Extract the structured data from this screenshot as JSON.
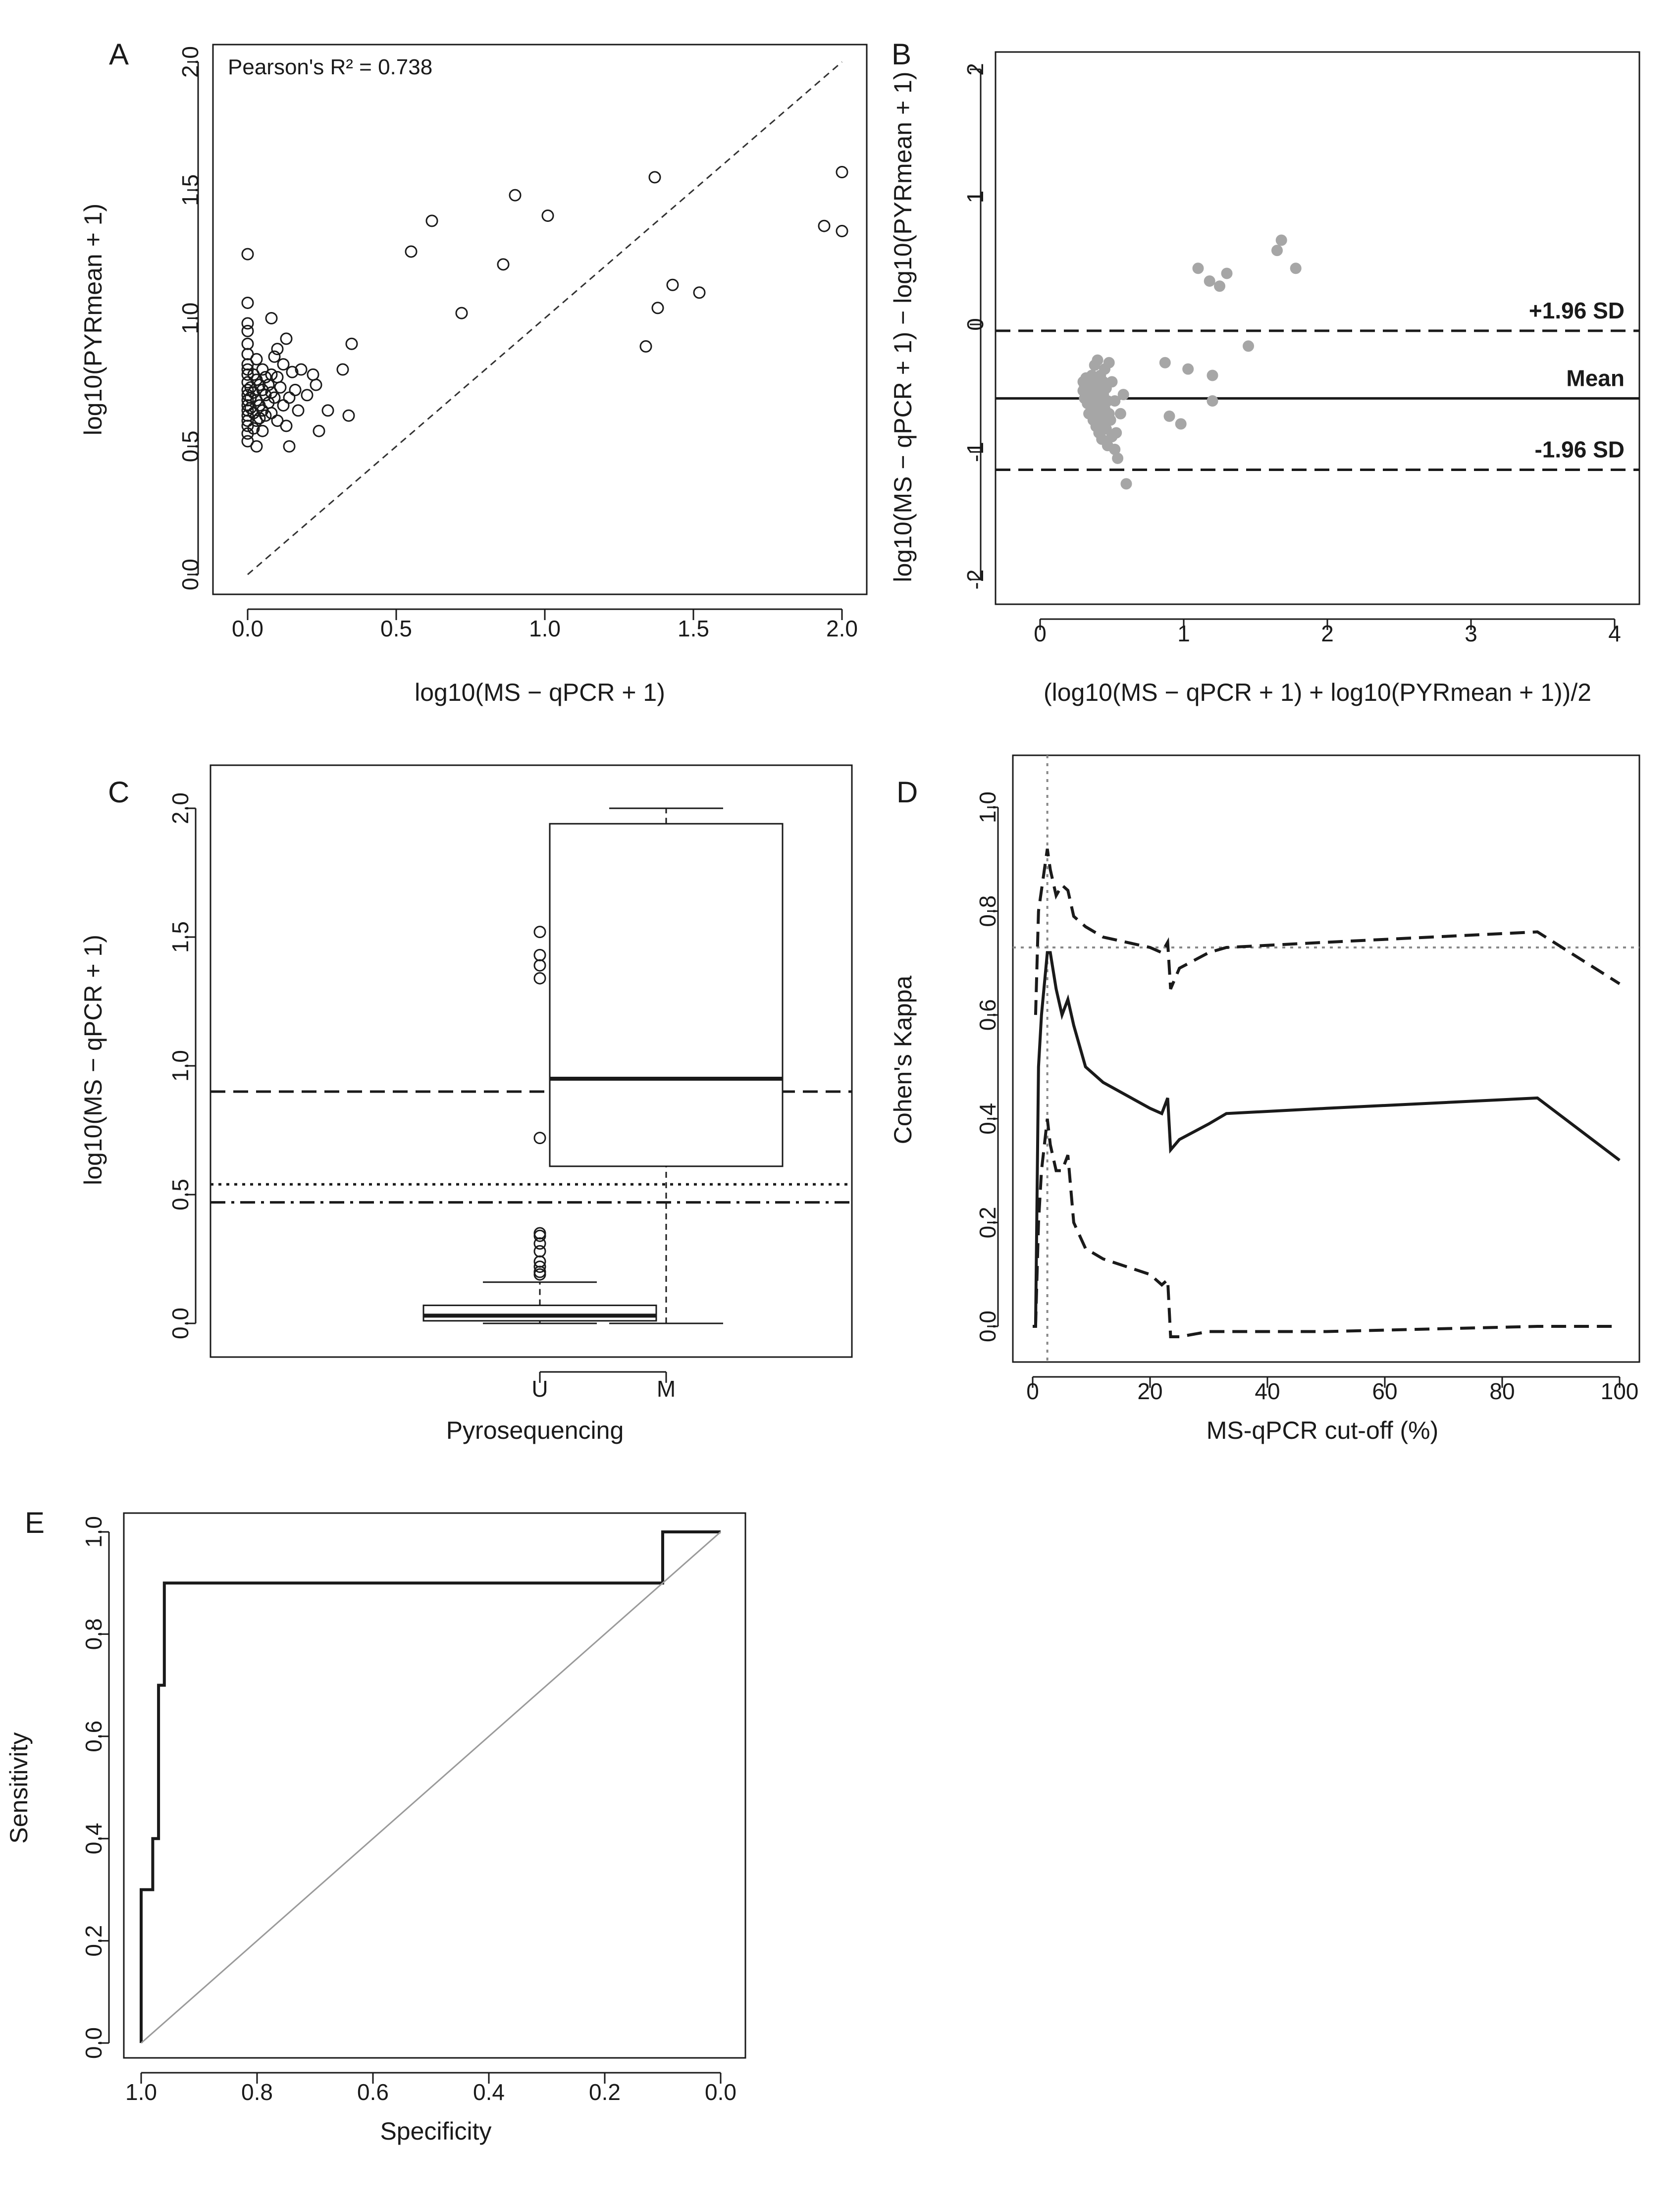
{
  "chart_data": [
    {
      "panel": "A",
      "type": "scatter",
      "xlabel": "log10(MS − qPCR + 1)",
      "ylabel": "log10(PYRmean + 1)",
      "annotation": "Pearson's R² = 0.738",
      "xlim": [
        0,
        2
      ],
      "ylim": [
        0,
        2
      ],
      "xticks": [
        "0.0",
        "0.5",
        "1.0",
        "1.5",
        "2.0"
      ],
      "yticks": [
        "0.0",
        "0.5",
        "1.0",
        "1.5",
        "2.0"
      ],
      "reference_line": "identity (y = x), dashed",
      "points": [
        [
          0.0,
          1.25
        ],
        [
          0.0,
          1.06
        ],
        [
          0.0,
          0.98
        ],
        [
          0.0,
          0.95
        ],
        [
          0.0,
          0.9
        ],
        [
          0.0,
          0.86
        ],
        [
          0.0,
          0.82
        ],
        [
          0.0,
          0.8
        ],
        [
          0.0,
          0.78
        ],
        [
          0.0,
          0.75
        ],
        [
          0.0,
          0.72
        ],
        [
          0.0,
          0.7
        ],
        [
          0.0,
          0.68
        ],
        [
          0.0,
          0.66
        ],
        [
          0.0,
          0.64
        ],
        [
          0.0,
          0.62
        ],
        [
          0.0,
          0.6
        ],
        [
          0.0,
          0.58
        ],
        [
          0.0,
          0.55
        ],
        [
          0.0,
          0.52
        ],
        [
          0.01,
          0.73
        ],
        [
          0.01,
          0.69
        ],
        [
          0.01,
          0.65
        ],
        [
          0.02,
          0.78
        ],
        [
          0.02,
          0.71
        ],
        [
          0.02,
          0.63
        ],
        [
          0.02,
          0.57
        ],
        [
          0.03,
          0.84
        ],
        [
          0.03,
          0.76
        ],
        [
          0.03,
          0.68
        ],
        [
          0.03,
          0.6
        ],
        [
          0.03,
          0.5
        ],
        [
          0.04,
          0.74
        ],
        [
          0.04,
          0.66
        ],
        [
          0.04,
          0.61
        ],
        [
          0.05,
          0.8
        ],
        [
          0.05,
          0.72
        ],
        [
          0.05,
          0.64
        ],
        [
          0.05,
          0.56
        ],
        [
          0.06,
          0.77
        ],
        [
          0.06,
          0.7
        ],
        [
          0.06,
          0.62
        ],
        [
          0.07,
          0.74
        ],
        [
          0.07,
          0.67
        ],
        [
          0.08,
          1.0
        ],
        [
          0.08,
          0.78
        ],
        [
          0.08,
          0.71
        ],
        [
          0.08,
          0.63
        ],
        [
          0.09,
          0.85
        ],
        [
          0.09,
          0.69
        ],
        [
          0.1,
          0.88
        ],
        [
          0.1,
          0.77
        ],
        [
          0.1,
          0.6
        ],
        [
          0.11,
          0.73
        ],
        [
          0.12,
          0.66
        ],
        [
          0.12,
          0.82
        ],
        [
          0.13,
          0.58
        ],
        [
          0.13,
          0.92
        ],
        [
          0.14,
          0.69
        ],
        [
          0.14,
          0.5
        ],
        [
          0.15,
          0.79
        ],
        [
          0.16,
          0.72
        ],
        [
          0.17,
          0.64
        ],
        [
          0.18,
          0.8
        ],
        [
          0.2,
          0.7
        ],
        [
          0.22,
          0.78
        ],
        [
          0.23,
          0.74
        ],
        [
          0.24,
          0.56
        ],
        [
          0.27,
          0.64
        ],
        [
          0.32,
          0.8
        ],
        [
          0.34,
          0.62
        ],
        [
          0.35,
          0.9
        ],
        [
          0.55,
          1.26
        ],
        [
          0.62,
          1.38
        ],
        [
          0.72,
          1.02
        ],
        [
          0.86,
          1.21
        ],
        [
          0.9,
          1.48
        ],
        [
          1.01,
          1.4
        ],
        [
          1.34,
          0.89
        ],
        [
          1.37,
          1.55
        ],
        [
          1.38,
          1.04
        ],
        [
          1.43,
          1.13
        ],
        [
          1.52,
          1.1
        ],
        [
          1.94,
          1.36
        ],
        [
          2.0,
          1.34
        ],
        [
          2.0,
          1.57
        ]
      ]
    },
    {
      "panel": "B",
      "type": "scatter",
      "subtype": "Bland-Altman",
      "xlabel": "(log10(MS − qPCR + 1) + log10(PYRmean + 1))/2",
      "ylabel": "log10(MS − qPCR + 1) − log10(PYRmean + 1)",
      "xlim": [
        0,
        4
      ],
      "ylim": [
        -2,
        2
      ],
      "xticks": [
        "0",
        "1",
        "2",
        "3",
        "4"
      ],
      "yticks": [
        "-2",
        "-1",
        "0",
        "1",
        "2"
      ],
      "lines": [
        {
          "label": "+1.96 SD",
          "y": -0.05,
          "style": "dashed"
        },
        {
          "label": "Mean",
          "y": -0.58,
          "style": "solid"
        },
        {
          "label": "-1.96 SD",
          "y": -1.14,
          "style": "dashed"
        }
      ],
      "points": [
        [
          0.3,
          -0.45
        ],
        [
          0.3,
          -0.52
        ],
        [
          0.31,
          -0.48
        ],
        [
          0.31,
          -0.58
        ],
        [
          0.32,
          -0.42
        ],
        [
          0.32,
          -0.55
        ],
        [
          0.33,
          -0.5
        ],
        [
          0.33,
          -0.62
        ],
        [
          0.34,
          -0.46
        ],
        [
          0.34,
          -0.7
        ],
        [
          0.35,
          -0.53
        ],
        [
          0.35,
          -0.6
        ],
        [
          0.36,
          -0.4
        ],
        [
          0.36,
          -0.66
        ],
        [
          0.37,
          -0.5
        ],
        [
          0.37,
          -0.75
        ],
        [
          0.38,
          -0.56
        ],
        [
          0.38,
          -0.62
        ],
        [
          0.39,
          -0.45
        ],
        [
          0.39,
          -0.8
        ],
        [
          0.4,
          -0.52
        ],
        [
          0.4,
          -0.68
        ],
        [
          0.41,
          -0.58
        ],
        [
          0.41,
          -0.85
        ],
        [
          0.42,
          -0.48
        ],
        [
          0.42,
          -0.72
        ],
        [
          0.43,
          -0.62
        ],
        [
          0.43,
          -0.9
        ],
        [
          0.44,
          -0.55
        ],
        [
          0.44,
          -0.78
        ],
        [
          0.45,
          -0.66
        ],
        [
          0.45,
          -0.35
        ],
        [
          0.46,
          -0.5
        ],
        [
          0.46,
          -0.82
        ],
        [
          0.47,
          -0.6
        ],
        [
          0.47,
          -0.95
        ],
        [
          0.48,
          -0.7
        ],
        [
          0.48,
          -0.3
        ],
        [
          0.49,
          -0.75
        ],
        [
          0.5,
          -0.88
        ],
        [
          0.5,
          -0.45
        ],
        [
          0.52,
          -0.98
        ],
        [
          0.52,
          -0.6
        ],
        [
          0.53,
          -0.85
        ],
        [
          0.54,
          -1.05
        ],
        [
          0.56,
          -0.7
        ],
        [
          0.58,
          -0.55
        ],
        [
          0.6,
          -1.25
        ],
        [
          0.38,
          -0.32
        ],
        [
          0.4,
          -0.28
        ],
        [
          0.42,
          -0.4
        ],
        [
          0.44,
          -0.45
        ],
        [
          0.87,
          -0.3
        ],
        [
          0.9,
          -0.72
        ],
        [
          0.98,
          -0.78
        ],
        [
          1.03,
          -0.35
        ],
        [
          1.1,
          0.44
        ],
        [
          1.18,
          0.34
        ],
        [
          1.2,
          -0.4
        ],
        [
          1.2,
          -0.6
        ],
        [
          1.25,
          0.3
        ],
        [
          1.3,
          0.4
        ],
        [
          1.45,
          -0.17
        ],
        [
          1.65,
          0.58
        ],
        [
          1.68,
          0.66
        ],
        [
          1.78,
          0.44
        ]
      ]
    },
    {
      "panel": "C",
      "type": "box",
      "xlabel": "Pyrosequencing",
      "ylabel": "log10(MS − qPCR + 1)",
      "categories": [
        "U",
        "M"
      ],
      "ylim": [
        0,
        2
      ],
      "yticks": [
        "0.0",
        "0.5",
        "1.0",
        "1.5",
        "2.0"
      ],
      "boxes": [
        {
          "name": "U",
          "whisker_low": 0.0,
          "q1": 0.01,
          "median": 0.03,
          "q3": 0.07,
          "whisker_high": 0.16,
          "outliers": [
            1.52,
            1.43,
            1.39,
            1.34,
            0.72,
            0.35,
            0.34,
            0.31,
            0.28,
            0.24,
            0.22,
            0.2,
            0.19
          ]
        },
        {
          "name": "M",
          "whisker_low": 0.0,
          "q1": 0.61,
          "median": 0.95,
          "q3": 1.94,
          "whisker_high": 2.0,
          "outliers": []
        }
      ],
      "horizontal_lines": [
        {
          "y": 0.9,
          "style": "dashed"
        },
        {
          "y": 0.54,
          "style": "dotted"
        },
        {
          "y": 0.47,
          "style": "dash-dot"
        }
      ]
    },
    {
      "panel": "D",
      "type": "line",
      "xlabel": "MS-qPCR cut-off (%)",
      "ylabel": "Cohen's Kappa",
      "xlim": [
        0,
        100
      ],
      "ylim": [
        0,
        1
      ],
      "xticks": [
        "0",
        "20",
        "40",
        "60",
        "80",
        "100"
      ],
      "yticks": [
        "0.0",
        "0.2",
        "0.4",
        "0.6",
        "0.8",
        "1.0"
      ],
      "reference_lines": [
        {
          "axis": "x",
          "value": 2.5,
          "style": "dotted"
        },
        {
          "axis": "y",
          "value": 0.73,
          "style": "dotted"
        }
      ],
      "series": [
        {
          "name": "kappa",
          "style": "solid",
          "points": [
            [
              0,
              0
            ],
            [
              0.5,
              0.0
            ],
            [
              1,
              0.5
            ],
            [
              1.5,
              0.6
            ],
            [
              2.5,
              0.72
            ],
            [
              3,
              0.72
            ],
            [
              4,
              0.65
            ],
            [
              5,
              0.6
            ],
            [
              6,
              0.63
            ],
            [
              7,
              0.58
            ],
            [
              9,
              0.5
            ],
            [
              12,
              0.47
            ],
            [
              20,
              0.42
            ],
            [
              22,
              0.41
            ],
            [
              23,
              0.44
            ],
            [
              23.5,
              0.34
            ],
            [
              25,
              0.36
            ],
            [
              30,
              0.39
            ],
            [
              33,
              0.41
            ],
            [
              50,
              0.42
            ],
            [
              86,
              0.44
            ],
            [
              100,
              0.32
            ]
          ]
        },
        {
          "name": "upper CI",
          "style": "dashed",
          "points": [
            [
              0.5,
              0.6
            ],
            [
              1,
              0.8
            ],
            [
              2.5,
              0.92
            ],
            [
              3,
              0.88
            ],
            [
              4,
              0.83
            ],
            [
              5,
              0.85
            ],
            [
              6,
              0.84
            ],
            [
              7,
              0.79
            ],
            [
              9,
              0.77
            ],
            [
              12,
              0.75
            ],
            [
              20,
              0.73
            ],
            [
              22,
              0.72
            ],
            [
              23,
              0.74
            ],
            [
              23.5,
              0.65
            ],
            [
              25,
              0.69
            ],
            [
              30,
              0.72
            ],
            [
              33,
              0.73
            ],
            [
              50,
              0.74
            ],
            [
              86,
              0.76
            ],
            [
              100,
              0.66
            ]
          ]
        },
        {
          "name": "lower CI",
          "style": "dashed",
          "points": [
            [
              0.5,
              0.0
            ],
            [
              1,
              0.2
            ],
            [
              1.5,
              0.3
            ],
            [
              2.5,
              0.4
            ],
            [
              3,
              0.35
            ],
            [
              4,
              0.3
            ],
            [
              5,
              0.3
            ],
            [
              6,
              0.33
            ],
            [
              7,
              0.2
            ],
            [
              9,
              0.15
            ],
            [
              12,
              0.13
            ],
            [
              20,
              0.1
            ],
            [
              22,
              0.08
            ],
            [
              23,
              0.09
            ],
            [
              23.5,
              -0.02
            ],
            [
              25,
              -0.02
            ],
            [
              30,
              -0.01
            ],
            [
              33,
              -0.01
            ],
            [
              50,
              -0.01
            ],
            [
              86,
              0.0
            ],
            [
              100,
              0.0
            ]
          ]
        }
      ]
    },
    {
      "panel": "E",
      "type": "line",
      "subtype": "ROC",
      "xlabel": "Specificity",
      "ylabel": "Sensitivity",
      "xlim": [
        1,
        0
      ],
      "ylim": [
        0,
        1
      ],
      "xticks": [
        "1.0",
        "0.8",
        "0.6",
        "0.4",
        "0.2",
        "0.0"
      ],
      "yticks": [
        "0.0",
        "0.2",
        "0.4",
        "0.6",
        "0.8",
        "1.0"
      ],
      "series": [
        {
          "name": "ROC curve",
          "style": "solid",
          "points": [
            [
              1.0,
              0.0
            ],
            [
              1.0,
              0.3
            ],
            [
              0.98,
              0.3
            ],
            [
              0.98,
              0.4
            ],
            [
              0.97,
              0.4
            ],
            [
              0.97,
              0.7
            ],
            [
              0.96,
              0.7
            ],
            [
              0.96,
              0.9
            ],
            [
              0.1,
              0.9
            ],
            [
              0.1,
              1.0
            ],
            [
              0.0,
              1.0
            ]
          ]
        },
        {
          "name": "chance",
          "style": "solid-grey",
          "points": [
            [
              1.0,
              0.0
            ],
            [
              0.0,
              1.0
            ]
          ]
        }
      ]
    }
  ]
}
